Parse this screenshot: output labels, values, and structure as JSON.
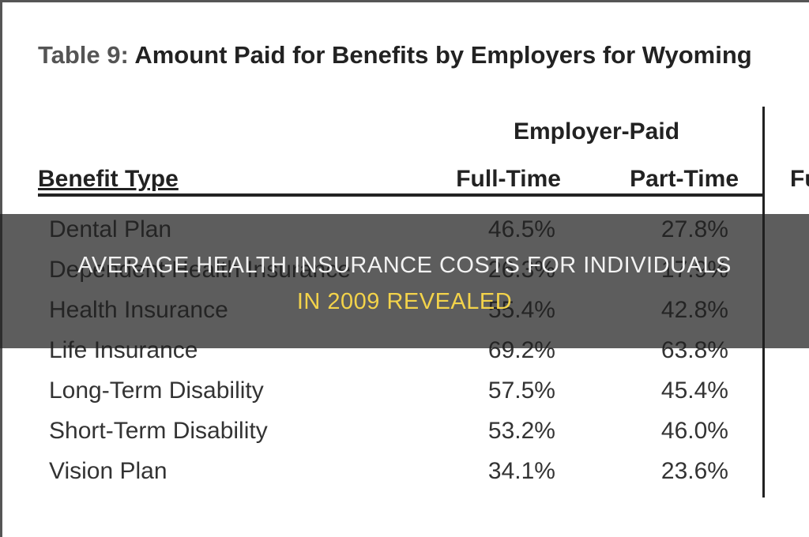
{
  "table": {
    "title_prefix": "Table 9:",
    "title": "Amount Paid for Benefits by Employers for Wyoming",
    "group_header": "Employer-Paid",
    "columns": [
      "Benefit Type",
      "Full-Time",
      "Part-Time",
      "Fu"
    ],
    "rows": [
      [
        "Dental Plan",
        "46.5%",
        "27.8%"
      ],
      [
        "Dependent Health Insurance",
        "26.3%",
        "17.9%"
      ],
      [
        "Health Insurance",
        "55.4%",
        "42.8%"
      ],
      [
        "Life Insurance",
        "69.2%",
        "63.8%"
      ],
      [
        "Long-Term Disability",
        "57.5%",
        "45.4%"
      ],
      [
        "Short-Term Disability",
        "53.2%",
        "46.0%"
      ],
      [
        "Vision Plan",
        "34.1%",
        "23.6%"
      ]
    ]
  },
  "overlay": {
    "lines": [
      "AVERAGE HEALTH INSURANCE COSTS FOR INDIVIDUALS",
      "IN 2009 REVEALED"
    ]
  }
}
